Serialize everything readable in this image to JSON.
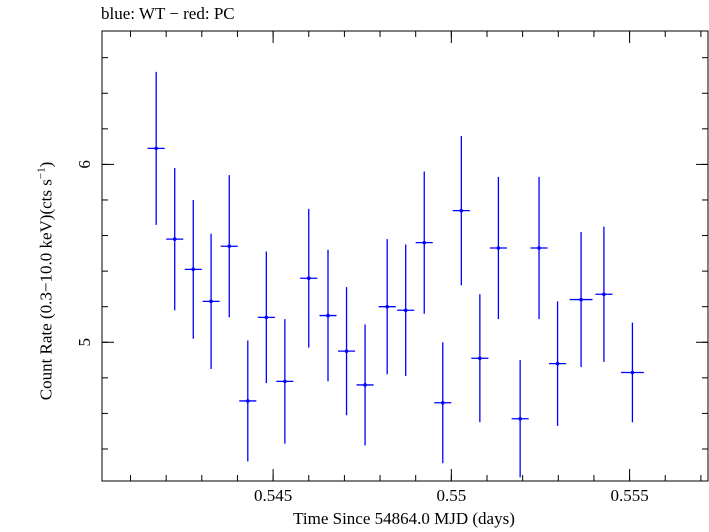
{
  "chart_data": {
    "type": "scatter",
    "title": "blue: WT − red: PC",
    "xlabel": "Time Since 54864.0 MJD (days)",
    "ylabel_main": "Count Rate (0.3−10.0 keV)(cts s",
    "ylabel_sup": "−1",
    "ylabel_end": ")",
    "xlim": [
      0.5402,
      0.5572
    ],
    "ylim": [
      4.22,
      6.75
    ],
    "x_ticks": [
      0.545,
      0.55,
      0.555
    ],
    "x_tick_labels": [
      "0.545",
      "0.55",
      "0.555"
    ],
    "x_minor_step": 0.001,
    "y_ticks": [
      5,
      6
    ],
    "y_tick_labels": [
      "5",
      "6"
    ],
    "y_minor_step": 0.2,
    "grid": false,
    "series": [
      {
        "color": "#0000ff",
        "points": [
          {
            "x": 0.54172,
            "xerr": 0.00024,
            "y": 6.09,
            "yerr": 0.43
          },
          {
            "x": 0.54224,
            "xerr": 0.00024,
            "y": 5.58,
            "yerr": 0.4
          },
          {
            "x": 0.54276,
            "xerr": 0.00024,
            "y": 5.41,
            "yerr": 0.39
          },
          {
            "x": 0.54326,
            "xerr": 0.00024,
            "y": 5.23,
            "yerr": 0.38
          },
          {
            "x": 0.54377,
            "xerr": 0.00024,
            "y": 5.54,
            "yerr": 0.4
          },
          {
            "x": 0.54429,
            "xerr": 0.00024,
            "y": 4.67,
            "yerr": 0.34
          },
          {
            "x": 0.54481,
            "xerr": 0.00024,
            "y": 5.14,
            "yerr": 0.37
          },
          {
            "x": 0.54533,
            "xerr": 0.00024,
            "y": 4.78,
            "yerr": 0.35
          },
          {
            "x": 0.546,
            "xerr": 0.00024,
            "y": 5.36,
            "yerr": 0.39
          },
          {
            "x": 0.54654,
            "xerr": 0.00024,
            "y": 5.15,
            "yerr": 0.37
          },
          {
            "x": 0.54706,
            "xerr": 0.00024,
            "y": 4.95,
            "yerr": 0.36
          },
          {
            "x": 0.54758,
            "xerr": 0.00024,
            "y": 4.76,
            "yerr": 0.34
          },
          {
            "x": 0.5482,
            "xerr": 0.00024,
            "y": 5.2,
            "yerr": 0.38
          },
          {
            "x": 0.54872,
            "xerr": 0.00024,
            "y": 5.18,
            "yerr": 0.37
          },
          {
            "x": 0.54924,
            "xerr": 0.00024,
            "y": 5.56,
            "yerr": 0.4
          },
          {
            "x": 0.54976,
            "xerr": 0.00024,
            "y": 4.66,
            "yerr": 0.34
          },
          {
            "x": 0.55028,
            "xerr": 0.00024,
            "y": 5.74,
            "yerr": 0.42
          },
          {
            "x": 0.5508,
            "xerr": 0.00024,
            "y": 4.91,
            "yerr": 0.36
          },
          {
            "x": 0.55132,
            "xerr": 0.00024,
            "y": 5.53,
            "yerr": 0.4
          },
          {
            "x": 0.55193,
            "xerr": 0.00024,
            "y": 4.57,
            "yerr": 0.33
          },
          {
            "x": 0.55246,
            "xerr": 0.00024,
            "y": 5.53,
            "yerr": 0.4
          },
          {
            "x": 0.55298,
            "xerr": 0.00024,
            "y": 4.88,
            "yerr": 0.35
          },
          {
            "x": 0.55364,
            "xerr": 0.00032,
            "y": 5.24,
            "yerr": 0.38
          },
          {
            "x": 0.55428,
            "xerr": 0.00024,
            "y": 5.27,
            "yerr": 0.38
          },
          {
            "x": 0.55508,
            "xerr": 0.00032,
            "y": 4.83,
            "yerr": 0.28
          }
        ]
      }
    ]
  }
}
